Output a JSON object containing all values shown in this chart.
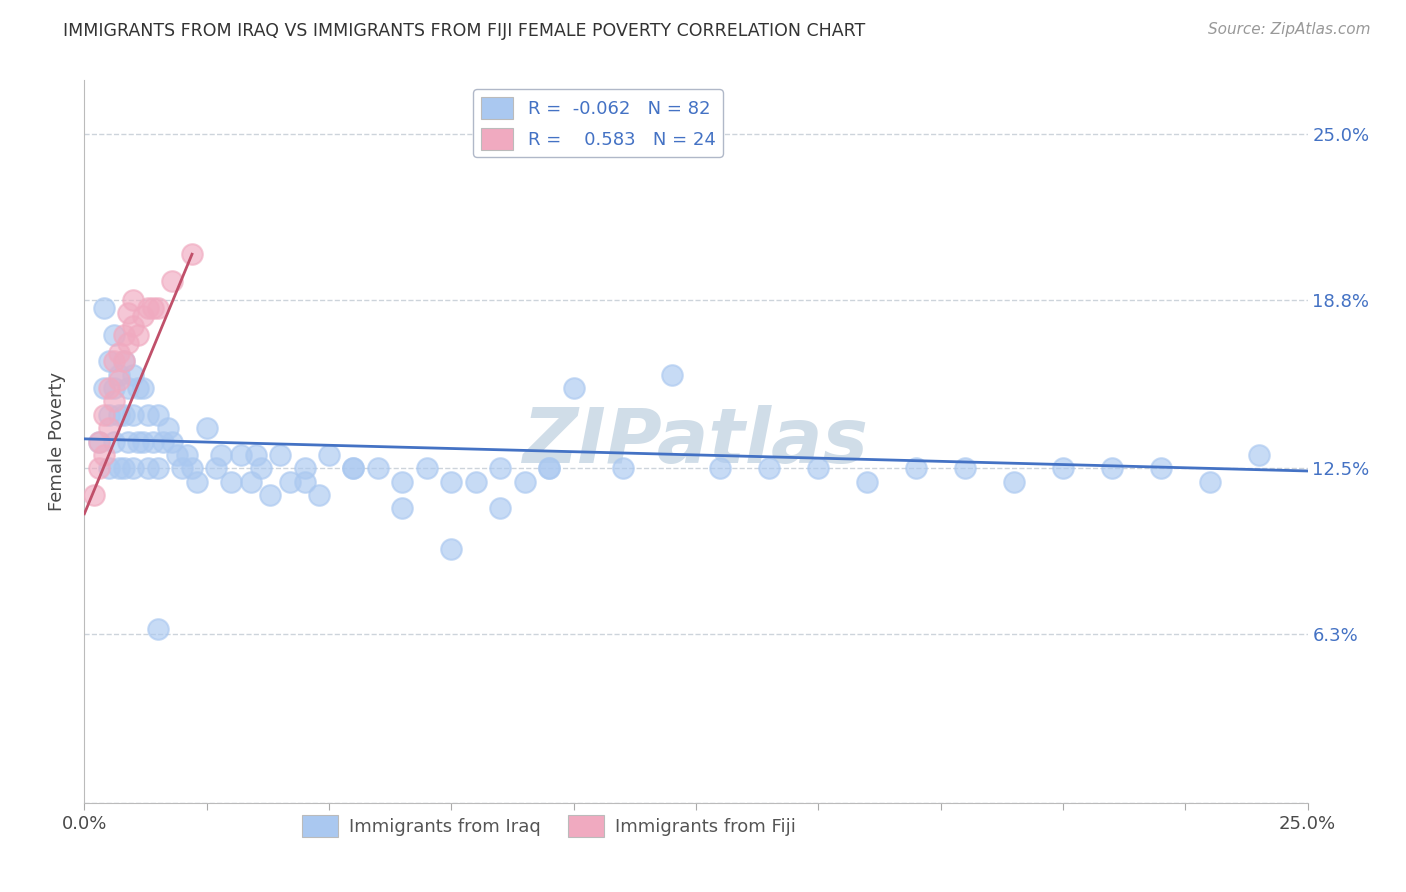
{
  "title": "IMMIGRANTS FROM IRAQ VS IMMIGRANTS FROM FIJI FEMALE POVERTY CORRELATION CHART",
  "source_text": "Source: ZipAtlas.com",
  "ylabel": "Female Poverty",
  "y_ticks": [
    0.0,
    0.063,
    0.125,
    0.188,
    0.25
  ],
  "y_tick_labels_right": [
    "",
    "6.3%",
    "12.5%",
    "18.8%",
    "25.0%"
  ],
  "xlim": [
    0.0,
    0.25
  ],
  "ylim": [
    0.0,
    0.27
  ],
  "iraq_color": "#aac8f0",
  "fiji_color": "#f0aac0",
  "iraq_line_color": "#4472c4",
  "fiji_line_color": "#c0506a",
  "watermark": "ZIPatlas",
  "watermark_color": "#d0dde8",
  "background_color": "#ffffff",
  "grid_color": "#c8d0d8",
  "iraq_x": [
    0.003,
    0.004,
    0.004,
    0.005,
    0.005,
    0.005,
    0.006,
    0.006,
    0.006,
    0.007,
    0.007,
    0.007,
    0.008,
    0.008,
    0.008,
    0.009,
    0.009,
    0.01,
    0.01,
    0.01,
    0.011,
    0.011,
    0.012,
    0.012,
    0.013,
    0.013,
    0.014,
    0.015,
    0.015,
    0.016,
    0.017,
    0.018,
    0.019,
    0.02,
    0.021,
    0.022,
    0.023,
    0.025,
    0.027,
    0.028,
    0.03,
    0.032,
    0.034,
    0.036,
    0.038,
    0.04,
    0.042,
    0.045,
    0.048,
    0.05,
    0.055,
    0.06,
    0.065,
    0.07,
    0.075,
    0.08,
    0.085,
    0.09,
    0.095,
    0.1,
    0.11,
    0.12,
    0.13,
    0.14,
    0.15,
    0.16,
    0.17,
    0.18,
    0.19,
    0.2,
    0.21,
    0.22,
    0.23,
    0.24,
    0.035,
    0.045,
    0.055,
    0.065,
    0.075,
    0.085,
    0.095,
    0.015
  ],
  "iraq_y": [
    0.135,
    0.185,
    0.155,
    0.165,
    0.145,
    0.125,
    0.155,
    0.175,
    0.135,
    0.145,
    0.16,
    0.125,
    0.165,
    0.145,
    0.125,
    0.155,
    0.135,
    0.16,
    0.145,
    0.125,
    0.155,
    0.135,
    0.155,
    0.135,
    0.145,
    0.125,
    0.135,
    0.145,
    0.125,
    0.135,
    0.14,
    0.135,
    0.13,
    0.125,
    0.13,
    0.125,
    0.12,
    0.14,
    0.125,
    0.13,
    0.12,
    0.13,
    0.12,
    0.125,
    0.115,
    0.13,
    0.12,
    0.125,
    0.115,
    0.13,
    0.125,
    0.125,
    0.12,
    0.125,
    0.12,
    0.12,
    0.125,
    0.12,
    0.125,
    0.155,
    0.125,
    0.16,
    0.125,
    0.125,
    0.125,
    0.12,
    0.125,
    0.125,
    0.12,
    0.125,
    0.125,
    0.125,
    0.12,
    0.13,
    0.13,
    0.12,
    0.125,
    0.11,
    0.095,
    0.11,
    0.125,
    0.065
  ],
  "fiji_x": [
    0.002,
    0.003,
    0.003,
    0.004,
    0.004,
    0.005,
    0.005,
    0.006,
    0.006,
    0.007,
    0.007,
    0.008,
    0.008,
    0.009,
    0.009,
    0.01,
    0.01,
    0.011,
    0.012,
    0.013,
    0.014,
    0.015,
    0.018,
    0.022
  ],
  "fiji_y": [
    0.115,
    0.125,
    0.135,
    0.13,
    0.145,
    0.14,
    0.155,
    0.15,
    0.165,
    0.158,
    0.168,
    0.165,
    0.175,
    0.172,
    0.183,
    0.178,
    0.188,
    0.175,
    0.182,
    0.185,
    0.185,
    0.185,
    0.195,
    0.205
  ],
  "iraq_trend_x0": 0.0,
  "iraq_trend_x1": 0.25,
  "iraq_trend_y0": 0.136,
  "iraq_trend_y1": 0.124,
  "fiji_trend_x0": 0.0,
  "fiji_trend_x1": 0.022,
  "fiji_trend_y0": 0.108,
  "fiji_trend_y1": 0.205
}
